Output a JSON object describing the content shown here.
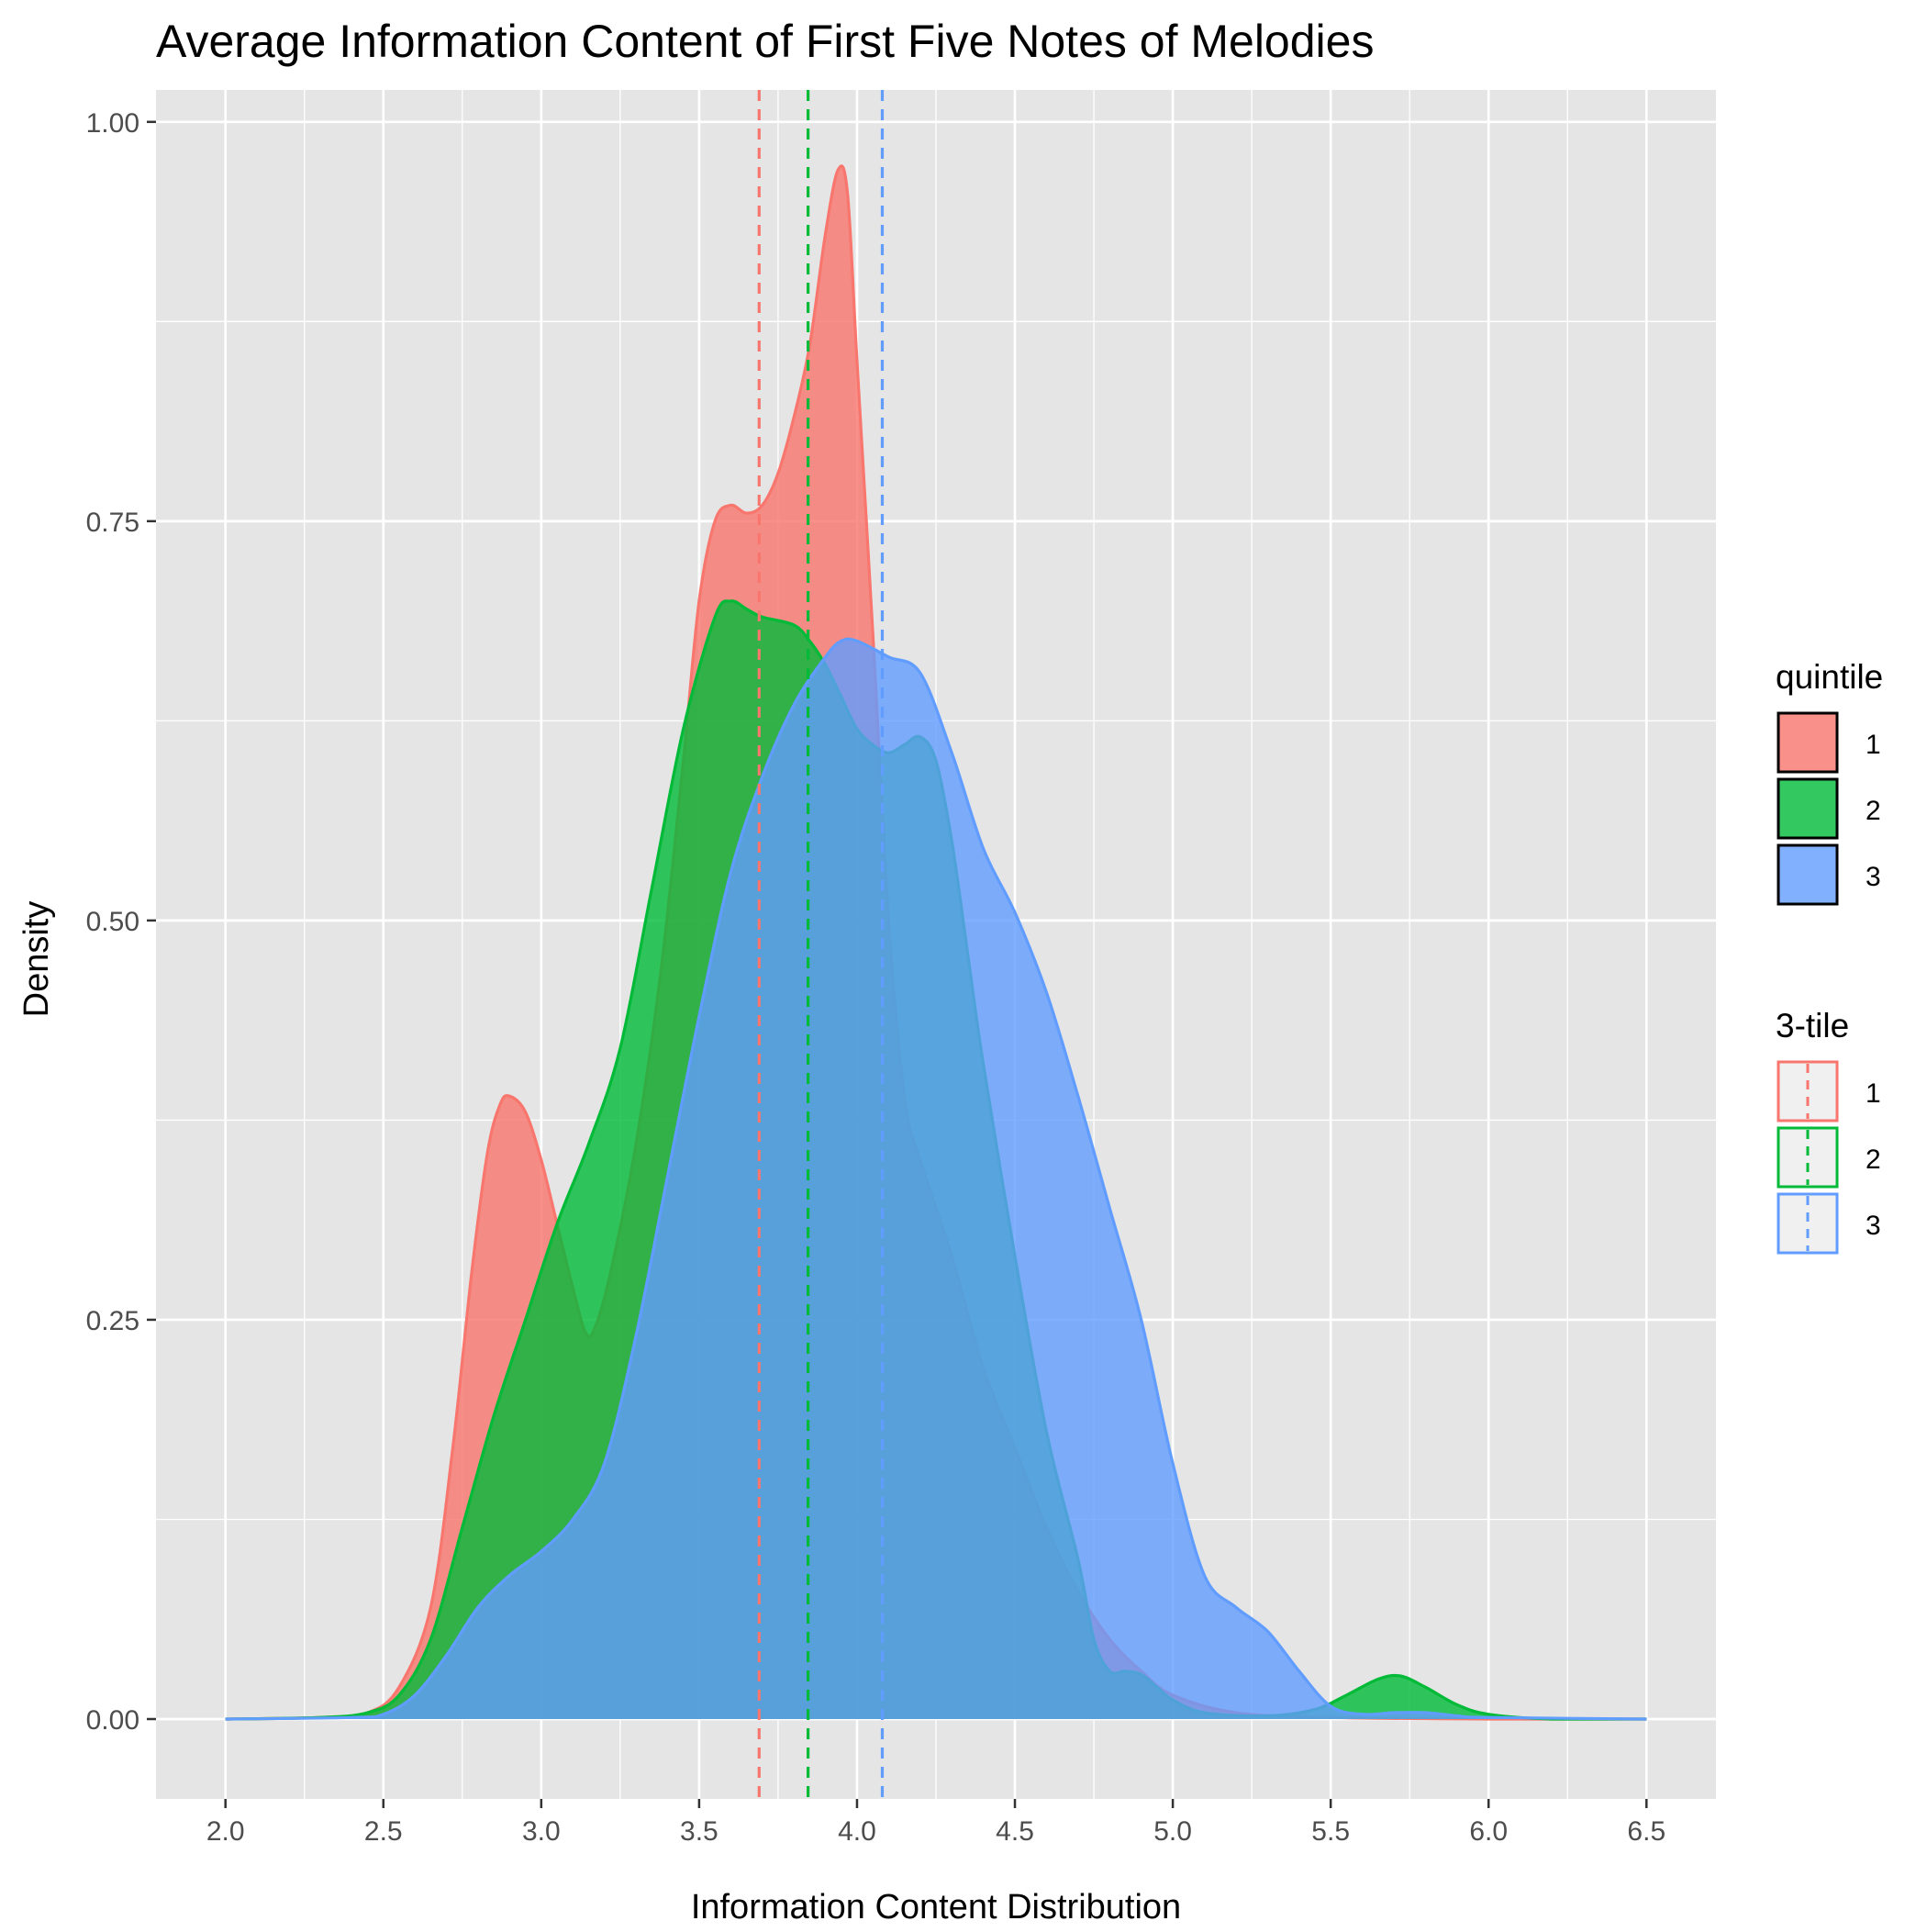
{
  "chart_data": {
    "type": "area",
    "title": "Average Information Content of First Five Notes of Melodies",
    "xlabel": "Information Content Distribution",
    "ylabel": "Density",
    "xlim": [
      1.78,
      6.72
    ],
    "ylim": [
      -0.05,
      1.02
    ],
    "x_ticks": [
      2.0,
      2.5,
      3.0,
      3.5,
      4.0,
      4.5,
      5.0,
      5.5,
      6.0,
      6.5
    ],
    "y_ticks": [
      0.0,
      0.25,
      0.5,
      0.75,
      1.0
    ],
    "x_tick_labels": [
      "2.0",
      "2.5",
      "3.0",
      "3.5",
      "4.0",
      "4.5",
      "5.0",
      "5.5",
      "6.0",
      "6.5"
    ],
    "y_tick_labels": [
      "0.00",
      "0.25",
      "0.50",
      "0.75",
      "1.00"
    ],
    "grid": true,
    "legend_position": "right",
    "series": [
      {
        "name": "1",
        "fill_color": "#F8766D",
        "line_color": "#F8766D",
        "mean": 3.69,
        "points": [
          [
            2.0,
            0.0
          ],
          [
            2.3,
            0.001
          ],
          [
            2.45,
            0.004
          ],
          [
            2.55,
            0.02
          ],
          [
            2.65,
            0.07
          ],
          [
            2.72,
            0.17
          ],
          [
            2.78,
            0.28
          ],
          [
            2.83,
            0.355
          ],
          [
            2.87,
            0.385
          ],
          [
            2.9,
            0.39
          ],
          [
            2.95,
            0.38
          ],
          [
            3.0,
            0.35
          ],
          [
            3.05,
            0.31
          ],
          [
            3.1,
            0.27
          ],
          [
            3.14,
            0.242
          ],
          [
            3.17,
            0.245
          ],
          [
            3.22,
            0.28
          ],
          [
            3.3,
            0.36
          ],
          [
            3.38,
            0.47
          ],
          [
            3.45,
            0.6
          ],
          [
            3.5,
            0.7
          ],
          [
            3.55,
            0.75
          ],
          [
            3.6,
            0.76
          ],
          [
            3.65,
            0.755
          ],
          [
            3.7,
            0.76
          ],
          [
            3.75,
            0.78
          ],
          [
            3.8,
            0.815
          ],
          [
            3.85,
            0.86
          ],
          [
            3.9,
            0.93
          ],
          [
            3.94,
            0.97
          ],
          [
            3.97,
            0.955
          ],
          [
            4.0,
            0.85
          ],
          [
            4.05,
            0.68
          ],
          [
            4.1,
            0.5
          ],
          [
            4.15,
            0.39
          ],
          [
            4.2,
            0.35
          ],
          [
            4.3,
            0.29
          ],
          [
            4.4,
            0.22
          ],
          [
            4.5,
            0.17
          ],
          [
            4.6,
            0.12
          ],
          [
            4.7,
            0.08
          ],
          [
            4.8,
            0.05
          ],
          [
            4.9,
            0.03
          ],
          [
            5.0,
            0.015
          ],
          [
            5.2,
            0.004
          ],
          [
            5.5,
            0.001
          ],
          [
            6.0,
            0.0
          ],
          [
            6.5,
            0.0
          ]
        ]
      },
      {
        "name": "2",
        "fill_color": "#00BA38",
        "line_color": "#00BA38",
        "mean": 3.845,
        "points": [
          [
            2.0,
            0.0
          ],
          [
            2.3,
            0.001
          ],
          [
            2.45,
            0.004
          ],
          [
            2.55,
            0.015
          ],
          [
            2.65,
            0.05
          ],
          [
            2.75,
            0.12
          ],
          [
            2.85,
            0.19
          ],
          [
            2.95,
            0.25
          ],
          [
            3.05,
            0.31
          ],
          [
            3.15,
            0.36
          ],
          [
            3.25,
            0.42
          ],
          [
            3.35,
            0.52
          ],
          [
            3.45,
            0.62
          ],
          [
            3.55,
            0.69
          ],
          [
            3.6,
            0.7
          ],
          [
            3.65,
            0.695
          ],
          [
            3.7,
            0.69
          ],
          [
            3.8,
            0.685
          ],
          [
            3.85,
            0.675
          ],
          [
            3.9,
            0.66
          ],
          [
            3.95,
            0.64
          ],
          [
            4.0,
            0.62
          ],
          [
            4.05,
            0.61
          ],
          [
            4.1,
            0.605
          ],
          [
            4.15,
            0.61
          ],
          [
            4.2,
            0.615
          ],
          [
            4.25,
            0.6
          ],
          [
            4.3,
            0.55
          ],
          [
            4.35,
            0.48
          ],
          [
            4.4,
            0.41
          ],
          [
            4.5,
            0.29
          ],
          [
            4.6,
            0.18
          ],
          [
            4.7,
            0.1
          ],
          [
            4.75,
            0.05
          ],
          [
            4.8,
            0.03
          ],
          [
            4.85,
            0.03
          ],
          [
            4.9,
            0.028
          ],
          [
            4.95,
            0.02
          ],
          [
            5.0,
            0.012
          ],
          [
            5.1,
            0.004
          ],
          [
            5.3,
            0.002
          ],
          [
            5.45,
            0.006
          ],
          [
            5.55,
            0.015
          ],
          [
            5.65,
            0.025
          ],
          [
            5.72,
            0.027
          ],
          [
            5.8,
            0.02
          ],
          [
            5.9,
            0.009
          ],
          [
            6.0,
            0.003
          ],
          [
            6.2,
            0.0
          ],
          [
            6.5,
            0.0
          ]
        ]
      },
      {
        "name": "3",
        "fill_color": "#619CFF",
        "line_color": "#619CFF",
        "mean": 4.08,
        "points": [
          [
            2.0,
            0.0
          ],
          [
            2.4,
            0.001
          ],
          [
            2.5,
            0.003
          ],
          [
            2.6,
            0.015
          ],
          [
            2.7,
            0.04
          ],
          [
            2.8,
            0.07
          ],
          [
            2.9,
            0.09
          ],
          [
            3.0,
            0.105
          ],
          [
            3.1,
            0.125
          ],
          [
            3.2,
            0.16
          ],
          [
            3.3,
            0.24
          ],
          [
            3.4,
            0.34
          ],
          [
            3.5,
            0.44
          ],
          [
            3.6,
            0.53
          ],
          [
            3.7,
            0.59
          ],
          [
            3.8,
            0.635
          ],
          [
            3.9,
            0.665
          ],
          [
            3.95,
            0.675
          ],
          [
            4.0,
            0.675
          ],
          [
            4.1,
            0.665
          ],
          [
            4.2,
            0.655
          ],
          [
            4.3,
            0.605
          ],
          [
            4.4,
            0.545
          ],
          [
            4.5,
            0.505
          ],
          [
            4.6,
            0.455
          ],
          [
            4.7,
            0.39
          ],
          [
            4.8,
            0.32
          ],
          [
            4.9,
            0.25
          ],
          [
            5.0,
            0.16
          ],
          [
            5.1,
            0.09
          ],
          [
            5.2,
            0.07
          ],
          [
            5.3,
            0.055
          ],
          [
            5.4,
            0.03
          ],
          [
            5.5,
            0.008
          ],
          [
            5.6,
            0.003
          ],
          [
            5.7,
            0.004
          ],
          [
            5.8,
            0.004
          ],
          [
            5.9,
            0.002
          ],
          [
            6.0,
            0.001
          ],
          [
            6.5,
            0.0
          ]
        ]
      }
    ]
  },
  "legend_quintile": {
    "title": "quintile",
    "items": [
      {
        "label": "1",
        "color": "#F8766D"
      },
      {
        "label": "2",
        "color": "#00BA38"
      },
      {
        "label": "3",
        "color": "#619CFF"
      }
    ]
  },
  "legend_tile": {
    "title": "3-tile",
    "items": [
      {
        "label": "1",
        "color": "#F8766D"
      },
      {
        "label": "2",
        "color": "#00BA38"
      },
      {
        "label": "3",
        "color": "#619CFF"
      }
    ]
  },
  "colors": {
    "panel_background": "#E5E5E5",
    "grid_major": "#FFFFFF",
    "legend_key_background": "#F0F0F0",
    "outline": "#000000"
  }
}
